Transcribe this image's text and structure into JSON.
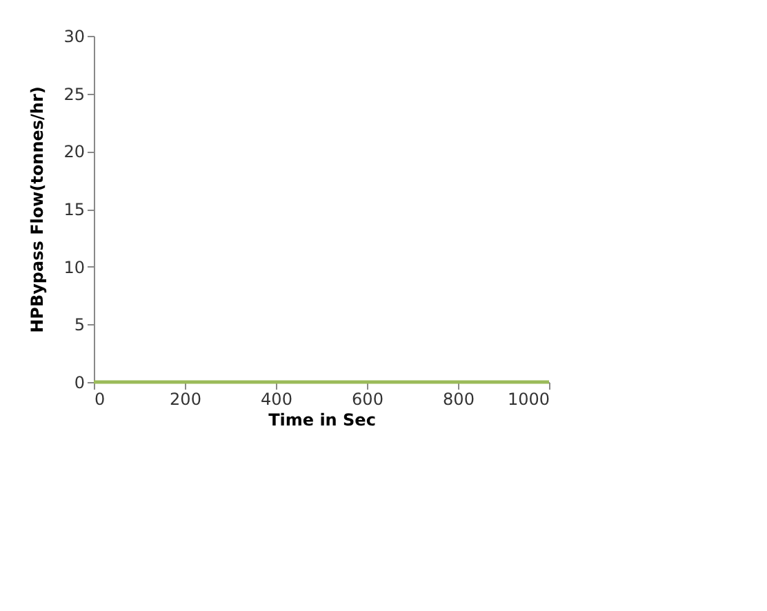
{
  "chart_data": {
    "type": "line",
    "xlabel": "Time in Sec",
    "ylabel": "HPBypass  Flow(tonnes/hr)",
    "x": [
      0,
      1000
    ],
    "series": [
      {
        "color": "#9bbb59",
        "values": [
          0,
          0
        ]
      }
    ],
    "xlim": [
      0,
      1000
    ],
    "xticks": [
      0,
      200,
      400,
      600,
      800,
      1000
    ],
    "ylim": [
      0,
      30
    ],
    "yticks": [
      0,
      5,
      10,
      15,
      20,
      25,
      30
    ],
    "grid": false,
    "marker": "none",
    "line_style": "solid"
  }
}
